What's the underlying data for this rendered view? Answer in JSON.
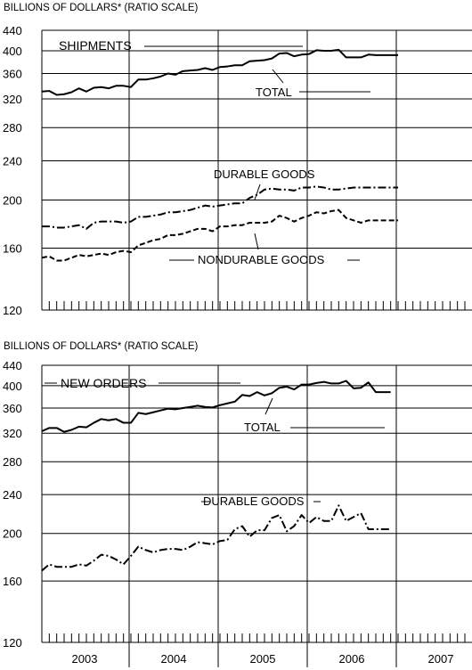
{
  "chart_data": [
    {
      "type": "line",
      "header": "BILLIONS OF DOLLARS* (RATIO SCALE)",
      "panel_title": "SHIPMENTS",
      "yscale": "log",
      "ylim": [
        120,
        440
      ],
      "yticks": [
        120,
        160,
        200,
        240,
        280,
        320,
        360,
        400,
        440
      ],
      "xlim": [
        2003.0,
        2008.0
      ],
      "x": [
        2003.0,
        2003.083,
        2003.167,
        2003.25,
        2003.333,
        2003.417,
        2003.5,
        2003.583,
        2003.667,
        2003.75,
        2003.833,
        2003.917,
        2004.0,
        2004.083,
        2004.167,
        2004.25,
        2004.333,
        2004.417,
        2004.5,
        2004.583,
        2004.667,
        2004.75,
        2004.833,
        2004.917,
        2005.0,
        2005.083,
        2005.167,
        2005.25,
        2005.333,
        2005.417,
        2005.5,
        2005.583,
        2005.667,
        2005.75,
        2005.833,
        2005.917,
        2006.0,
        2006.083,
        2006.167,
        2006.25,
        2006.333,
        2006.417,
        2006.5,
        2006.583,
        2006.667,
        2006.75,
        2006.833,
        2006.917,
        2007.0
      ],
      "series": [
        {
          "name": "TOTAL",
          "label": "TOTAL",
          "style": "solid",
          "values": [
            331,
            332,
            326,
            327,
            330,
            336,
            331,
            337,
            338,
            336,
            340,
            340,
            338,
            350,
            350,
            352,
            355,
            360,
            358,
            364,
            365,
            366,
            369,
            366,
            371,
            372,
            374,
            374,
            381,
            382,
            383,
            386,
            395,
            396,
            390,
            393,
            394,
            401,
            400,
            400,
            402,
            388,
            388,
            388,
            393,
            392,
            392,
            392,
            392
          ]
        },
        {
          "name": "DURABLE GOODS",
          "label": "DURABLE GOODS",
          "style": "dashdot",
          "values": [
            177,
            177,
            176,
            176,
            177,
            178,
            175,
            180,
            181,
            181,
            181,
            180,
            181,
            185,
            185,
            186,
            187,
            189,
            189,
            190,
            191,
            193,
            195,
            194,
            195,
            196,
            197,
            197,
            202,
            205,
            210,
            211,
            210,
            210,
            209,
            212,
            212,
            213,
            212,
            210,
            210,
            211,
            212,
            212,
            212,
            212,
            212,
            212,
            212
          ]
        },
        {
          "name": "NONDURABLE GOODS",
          "label": "NONDURABLE GOODS",
          "style": "dashed",
          "values": [
            153,
            154,
            151,
            151,
            153,
            155,
            154,
            155,
            156,
            155,
            157,
            158,
            157,
            162,
            164,
            166,
            167,
            170,
            170,
            171,
            173,
            175,
            175,
            173,
            177,
            177,
            178,
            178,
            180,
            180,
            180,
            181,
            186,
            184,
            181,
            184,
            186,
            189,
            188,
            190,
            191,
            184,
            182,
            180,
            182,
            182,
            182,
            182,
            182
          ]
        }
      ],
      "xticks": [
        "2003",
        "2004",
        "2005",
        "2006",
        "2007"
      ]
    },
    {
      "type": "line",
      "header": "BILLIONS OF DOLLARS* (RATIO SCALE)",
      "panel_title": "NEW ORDERS",
      "yscale": "log",
      "ylim": [
        120,
        440
      ],
      "yticks": [
        120,
        160,
        200,
        240,
        280,
        320,
        360,
        400,
        440
      ],
      "xlim": [
        2003.0,
        2008.0
      ],
      "x": [
        2003.0,
        2003.083,
        2003.167,
        2003.25,
        2003.333,
        2003.417,
        2003.5,
        2003.583,
        2003.667,
        2003.75,
        2003.833,
        2003.917,
        2004.0,
        2004.083,
        2004.167,
        2004.25,
        2004.333,
        2004.417,
        2004.5,
        2004.583,
        2004.667,
        2004.75,
        2004.833,
        2004.917,
        2005.0,
        2005.083,
        2005.167,
        2005.25,
        2005.333,
        2005.417,
        2005.5,
        2005.583,
        2005.667,
        2005.75,
        2005.833,
        2005.917,
        2006.0,
        2006.083,
        2006.167,
        2006.25,
        2006.333,
        2006.417,
        2006.5,
        2006.583,
        2006.667,
        2006.75,
        2006.833,
        2006.917
      ],
      "series": [
        {
          "name": "TOTAL",
          "label": "TOTAL",
          "style": "solid",
          "values": [
            323,
            328,
            328,
            322,
            325,
            330,
            329,
            336,
            342,
            340,
            342,
            336,
            336,
            352,
            350,
            353,
            356,
            359,
            358,
            360,
            362,
            364,
            362,
            361,
            365,
            368,
            371,
            383,
            381,
            388,
            382,
            386,
            396,
            398,
            393,
            402,
            402,
            405,
            407,
            404,
            404,
            409,
            395,
            396,
            406,
            388,
            388,
            388
          ]
        },
        {
          "name": "DURABLE GOODS",
          "label": "DURABLE GOODS",
          "style": "dashdot",
          "values": [
            168,
            173,
            171,
            171,
            171,
            173,
            172,
            176,
            181,
            180,
            177,
            173,
            180,
            188,
            185,
            183,
            185,
            186,
            186,
            185,
            188,
            192,
            191,
            190,
            193,
            194,
            204,
            207,
            197,
            203,
            203,
            215,
            218,
            202,
            207,
            218,
            210,
            216,
            212,
            212,
            228,
            212,
            216,
            220,
            204,
            204,
            204,
            204
          ]
        }
      ],
      "xticks": [
        "2003",
        "2004",
        "2005",
        "2006",
        "2007"
      ]
    }
  ]
}
